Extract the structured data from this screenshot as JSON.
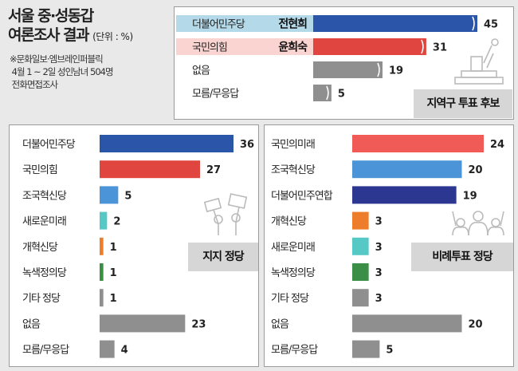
{
  "title": {
    "main_line1": "서울 중·성동갑",
    "main_line2": "여론조사 결과",
    "unit": "(단위 : %)"
  },
  "source_note": "※문화일보·엠브레인퍼블릭\n 4월 1 ~ 2일 성인남녀 504명\n 전화면접조사",
  "colors": {
    "blue": "#2a55a8",
    "red": "#e0463f",
    "gray": "#8f8f8f",
    "lightblue": "#4b94d8",
    "teal": "#56c8c6",
    "orange": "#ee7d2b",
    "green": "#3a8e46",
    "navy": "#2b3790",
    "coral": "#f05b57"
  },
  "chart_data": [
    {
      "type": "bar",
      "tag": "지역구 투표 후보",
      "icon": "ballot-box-icon",
      "xlim": [
        0,
        45
      ],
      "categories": [
        "더불어민주당",
        "국민의힘",
        "없음",
        "모름/무응답"
      ],
      "candidates": [
        "전현희",
        "윤희숙",
        "",
        ""
      ],
      "values": [
        45,
        31,
        19,
        5
      ],
      "colors": [
        "#2a55a8",
        "#e0463f",
        "#8f8f8f",
        "#8f8f8f"
      ],
      "label_bg": [
        "#b4d9e8",
        "#fad4d0",
        "",
        ""
      ]
    },
    {
      "type": "bar",
      "tag": "지지 정당",
      "icon": "protest-signs-icon",
      "xlim": [
        0,
        36
      ],
      "categories": [
        "더불어민주당",
        "국민의힘",
        "조국혁신당",
        "새로운미래",
        "개혁신당",
        "녹색정의당",
        "기타 정당",
        "없음",
        "모름/무응답"
      ],
      "values": [
        36,
        27,
        5,
        2,
        1,
        1,
        1,
        23,
        4
      ],
      "colors": [
        "#2a55a8",
        "#e0463f",
        "#4b94d8",
        "#56c8c6",
        "#ee7d2b",
        "#3a8e46",
        "#8f8f8f",
        "#8f8f8f",
        "#8f8f8f"
      ]
    },
    {
      "type": "bar",
      "tag": "비례투표 정당",
      "icon": "raised-hands-icon",
      "xlim": [
        0,
        24
      ],
      "categories": [
        "국민의미래",
        "조국혁신당",
        "더불어민주연합",
        "개혁신당",
        "새로운미래",
        "녹색정의당",
        "기타 정당",
        "없음",
        "모름/무응답"
      ],
      "values": [
        24,
        20,
        19,
        3,
        3,
        3,
        3,
        20,
        5
      ],
      "colors": [
        "#f05b57",
        "#4b94d8",
        "#2b3790",
        "#ee7d2b",
        "#56c8c6",
        "#3a8e46",
        "#8f8f8f",
        "#8f8f8f",
        "#8f8f8f"
      ]
    }
  ]
}
